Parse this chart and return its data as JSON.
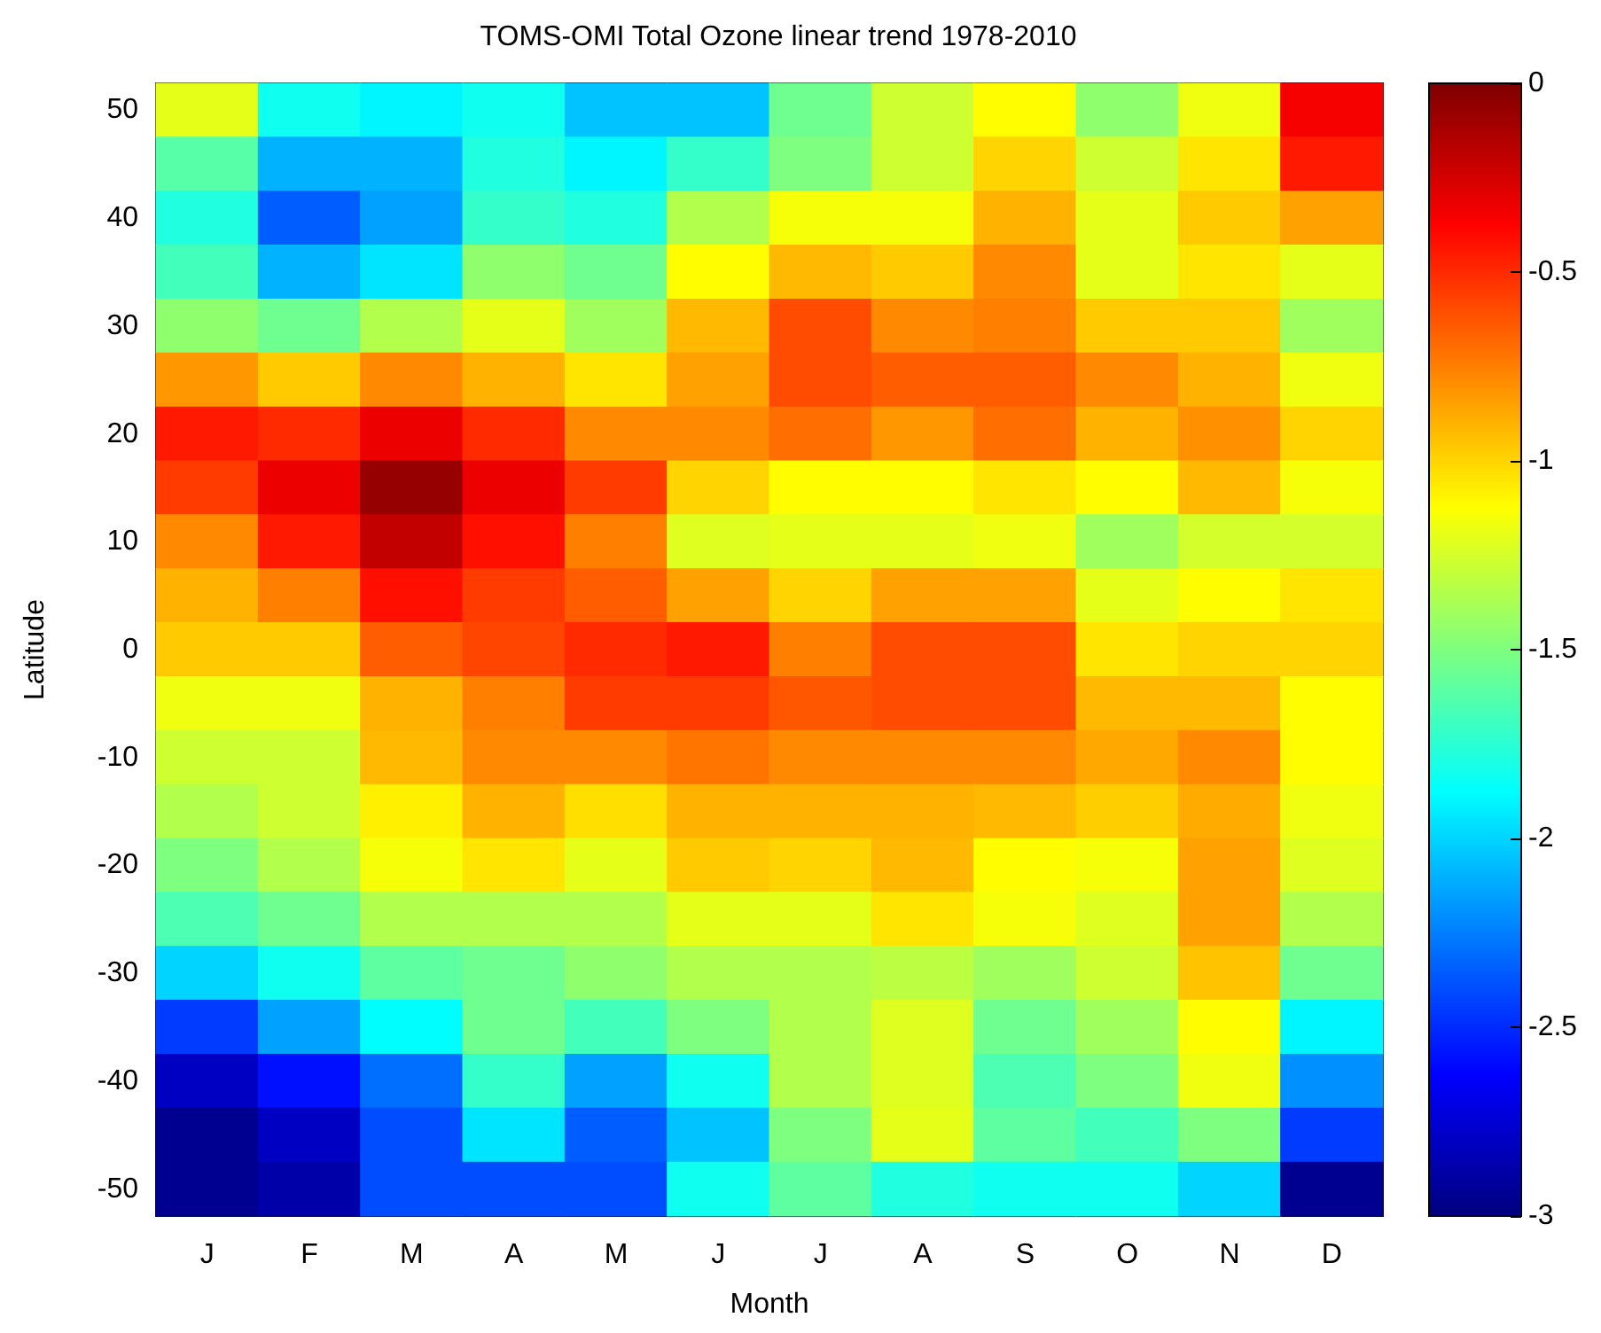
{
  "chart_data": {
    "type": "heatmap",
    "title": "TOMS-OMI Total Ozone linear trend 1978-2010",
    "xlabel": "Month",
    "ylabel": "Latitude",
    "categories": [
      "J",
      "F",
      "M",
      "A",
      "M",
      "J",
      "J",
      "A",
      "S",
      "O",
      "N",
      "D"
    ],
    "y_categories": [
      "50",
      null,
      "40",
      null,
      "30",
      null,
      "20",
      null,
      "10",
      null,
      "0",
      null,
      "-10",
      null,
      "-20",
      null,
      "-30",
      null,
      "-40",
      null,
      "-50"
    ],
    "cells": [
      [
        -1.2,
        -1.83,
        -1.9,
        -1.83,
        -2.05,
        -2.05,
        -1.55,
        -1.27,
        -1.12,
        -1.45,
        -1.17,
        -0.35
      ],
      [
        -1.62,
        -2.1,
        -2.1,
        -1.78,
        -1.9,
        -1.72,
        -1.5,
        -1.27,
        -1.0,
        -1.27,
        -1.05,
        -0.45
      ],
      [
        -1.78,
        -2.35,
        -2.15,
        -1.72,
        -1.78,
        -1.35,
        -1.15,
        -1.15,
        -0.9,
        -1.2,
        -0.97,
        -0.85
      ],
      [
        -1.68,
        -2.1,
        -1.95,
        -1.45,
        -1.55,
        -1.12,
        -0.92,
        -0.97,
        -0.78,
        -1.2,
        -1.05,
        -1.2
      ],
      [
        -1.45,
        -1.55,
        -1.35,
        -1.2,
        -1.4,
        -0.92,
        -0.6,
        -0.78,
        -0.75,
        -0.97,
        -0.97,
        -1.4
      ],
      [
        -0.82,
        -0.97,
        -0.78,
        -0.9,
        -1.05,
        -0.85,
        -0.6,
        -0.65,
        -0.65,
        -0.78,
        -0.9,
        -1.17
      ],
      [
        -0.45,
        -0.5,
        -0.32,
        -0.5,
        -0.78,
        -0.78,
        -0.7,
        -0.82,
        -0.7,
        -0.9,
        -0.8,
        -1.0
      ],
      [
        -0.55,
        -0.32,
        -0.07,
        -0.32,
        -0.55,
        -1.0,
        -1.12,
        -1.12,
        -1.05,
        -1.12,
        -0.92,
        -1.15
      ],
      [
        -0.78,
        -0.45,
        -0.2,
        -0.42,
        -0.75,
        -1.22,
        -1.2,
        -1.2,
        -1.17,
        -1.4,
        -1.25,
        -1.25
      ],
      [
        -0.9,
        -0.75,
        -0.42,
        -0.55,
        -0.65,
        -0.85,
        -1.0,
        -0.85,
        -0.85,
        -1.2,
        -1.12,
        -1.05
      ],
      [
        -0.97,
        -0.97,
        -0.65,
        -0.58,
        -0.5,
        -0.45,
        -0.75,
        -0.6,
        -0.6,
        -1.05,
        -1.0,
        -1.0
      ],
      [
        -1.17,
        -1.17,
        -0.9,
        -0.75,
        -0.55,
        -0.55,
        -0.63,
        -0.6,
        -0.6,
        -0.92,
        -0.92,
        -1.12
      ],
      [
        -1.27,
        -1.27,
        -0.92,
        -0.78,
        -0.78,
        -0.72,
        -0.78,
        -0.78,
        -0.78,
        -0.87,
        -0.78,
        -1.12
      ],
      [
        -1.35,
        -1.27,
        -1.08,
        -0.9,
        -1.03,
        -0.9,
        -0.9,
        -0.9,
        -0.92,
        -0.98,
        -0.88,
        -1.17
      ],
      [
        -1.5,
        -1.35,
        -1.15,
        -1.05,
        -1.2,
        -0.97,
        -1.0,
        -0.92,
        -1.12,
        -1.15,
        -0.85,
        -1.22
      ],
      [
        -1.65,
        -1.55,
        -1.35,
        -1.35,
        -1.35,
        -1.2,
        -1.2,
        -1.05,
        -1.15,
        -1.22,
        -0.85,
        -1.35
      ],
      [
        -2.0,
        -1.83,
        -1.6,
        -1.55,
        -1.45,
        -1.35,
        -1.35,
        -1.32,
        -1.4,
        -1.27,
        -0.95,
        -1.55
      ],
      [
        -2.45,
        -2.15,
        -1.88,
        -1.55,
        -1.68,
        -1.5,
        -1.35,
        -1.22,
        -1.55,
        -1.4,
        -1.12,
        -1.9
      ],
      [
        -2.8,
        -2.58,
        -2.3,
        -1.72,
        -2.15,
        -1.83,
        -1.35,
        -1.22,
        -1.65,
        -1.5,
        -1.17,
        -2.2
      ],
      [
        -2.95,
        -2.8,
        -2.4,
        -1.95,
        -2.35,
        -2.05,
        -1.5,
        -1.2,
        -1.6,
        -1.68,
        -1.5,
        -2.45
      ],
      [
        -2.95,
        -2.88,
        -2.4,
        -2.4,
        -2.4,
        -1.83,
        -1.6,
        -1.78,
        -1.83,
        -1.83,
        -2.0,
        -2.95
      ]
    ],
    "clim": [
      -3,
      0
    ],
    "cticks": [
      0,
      -0.5,
      -1,
      -1.5,
      -2,
      -2.5,
      -3
    ]
  }
}
